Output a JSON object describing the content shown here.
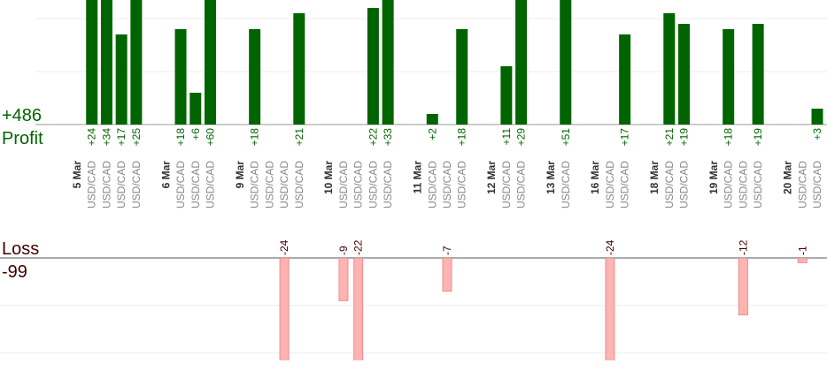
{
  "profit_total": {
    "value": 486,
    "label": "+486"
  },
  "profit_label": "Profit",
  "loss_label": "Loss",
  "loss_total": -99,
  "chart_data": {
    "type": "bar",
    "profit_color": "#006400",
    "loss_color": "#ffb3b3",
    "profit_ylim": [
      0,
      23.5
    ],
    "profit_yticks": [
      0,
      10,
      20
    ],
    "loss_ylim": [
      -21.5,
      0
    ],
    "loss_yticks": [
      0,
      -10,
      -20
    ],
    "grid": true,
    "days": [
      {
        "date": "5 Mar",
        "symbols": [
          "USD/CAD",
          "USD/CAD",
          "USD/CAD",
          "USD/CAD"
        ],
        "values": [
          24,
          34,
          17,
          25
        ],
        "value_labels": [
          "+24",
          "+34",
          "+17",
          "+25"
        ]
      },
      {
        "date": "6 Mar",
        "symbols": [
          "USD/CAD",
          "USD/CAD",
          "USD/CAD"
        ],
        "values": [
          18,
          6,
          60
        ],
        "value_labels": [
          "+18",
          "+6",
          "+60"
        ]
      },
      {
        "date": "9 Mar",
        "symbols": [
          "USD/CAD",
          "USD/CAD",
          "USD/CAD",
          "USD/CAD"
        ],
        "values": [
          18,
          0,
          -24,
          21
        ],
        "value_labels": [
          "+18",
          null,
          "-24",
          "+21"
        ]
      },
      {
        "date": "10 Mar",
        "symbols": [
          "USD/CAD",
          "USD/CAD",
          "USD/CAD",
          "USD/CAD"
        ],
        "values": [
          -9,
          -22,
          22,
          33
        ],
        "value_labels": [
          "-9",
          "-22",
          "+22",
          "+33"
        ]
      },
      {
        "date": "11 Mar",
        "symbols": [
          "USD/CAD",
          "USD/CAD",
          "USD/CAD"
        ],
        "values": [
          2,
          -7,
          18
        ],
        "value_labels": [
          "+2",
          "-7",
          "+18"
        ]
      },
      {
        "date": "12 Mar",
        "symbols": [
          "USD/CAD",
          "USD/CAD"
        ],
        "values": [
          11,
          29
        ],
        "value_labels": [
          "+11",
          "+29"
        ]
      },
      {
        "date": "13 Mar",
        "symbols": [
          "USD/CAD"
        ],
        "values": [
          51
        ],
        "value_labels": [
          "+51"
        ]
      },
      {
        "date": "16 Mar",
        "symbols": [
          "USD/CAD",
          "USD/CAD"
        ],
        "values": [
          -24,
          17
        ],
        "value_labels": [
          "-24",
          "+17"
        ]
      },
      {
        "date": "18 Mar",
        "symbols": [
          "USD/CAD",
          "USD/CAD"
        ],
        "values": [
          21,
          19
        ],
        "value_labels": [
          "+21",
          "+19"
        ]
      },
      {
        "date": "19 Mar",
        "symbols": [
          "USD/CAD",
          "USD/CAD",
          "USD/CAD"
        ],
        "values": [
          18,
          -12,
          19
        ],
        "value_labels": [
          "+18",
          "-12",
          "+19"
        ]
      },
      {
        "date": "20 Mar",
        "symbols": [
          "USD/CAD",
          "USD/CAD"
        ],
        "values": [
          -1,
          3
        ],
        "value_labels": [
          "-1",
          "+3"
        ]
      }
    ]
  }
}
